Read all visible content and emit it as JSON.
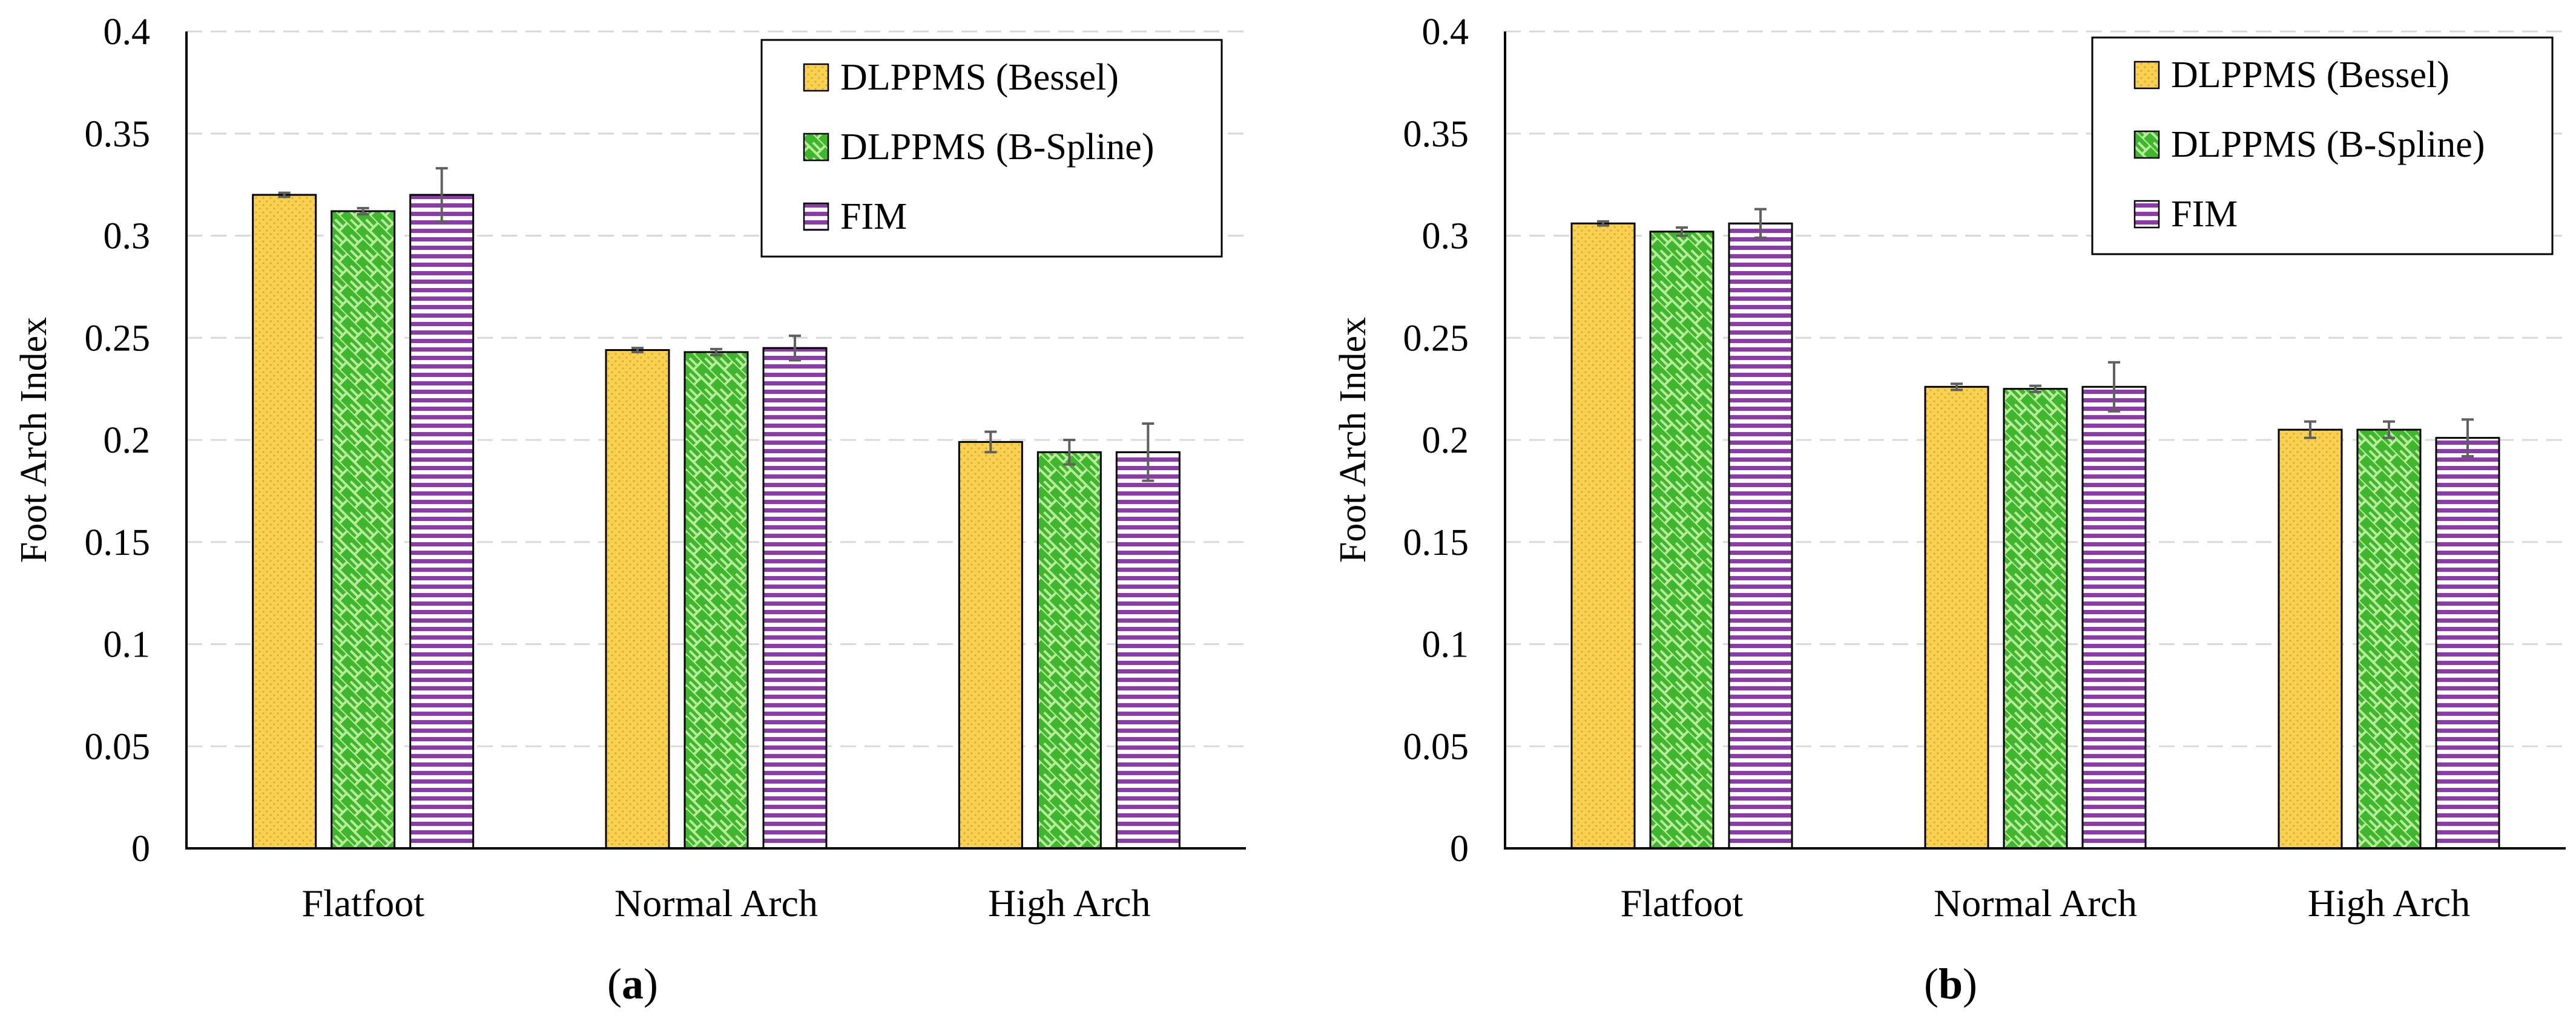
{
  "legend": {
    "bessel": "DLPPMS (Bessel)",
    "bspline": "DLPPMS (B-Spline)",
    "fim": "FIM"
  },
  "colors": {
    "bessel_fill": "#f7d154",
    "bessel_pattern": "#f0b830",
    "bspline_fill": "#3fb62d",
    "bspline_pattern": "#b8ec9a",
    "fim_fill": "#ffffff",
    "fim_stripe": "#8b3ca8",
    "axis": "#000000",
    "grid": "#d9d9d9",
    "errorbar": "#606060"
  },
  "chart_data": [
    {
      "type": "bar",
      "panel_label": "a",
      "categories": [
        "Flatfoot",
        "Normal Arch",
        "High Arch"
      ],
      "series": [
        {
          "name": "DLPPMS (Bessel)",
          "values": [
            0.32,
            0.244,
            0.199
          ],
          "errors": [
            0.001,
            0.001,
            0.005
          ]
        },
        {
          "name": "DLPPMS (B-Spline)",
          "values": [
            0.312,
            0.243,
            0.194
          ],
          "errors": [
            0.0015,
            0.0015,
            0.006
          ]
        },
        {
          "name": "FIM",
          "values": [
            0.32,
            0.245,
            0.194
          ],
          "errors": [
            0.013,
            0.006,
            0.014
          ]
        }
      ],
      "ylabel": "Foot Arch Index",
      "xlabel": "",
      "ylim": [
        0,
        0.4
      ],
      "yticks": [
        "0",
        "0.05",
        "0.1",
        "0.15",
        "0.2",
        "0.25",
        "0.3",
        "0.35",
        "0.4"
      ],
      "grid": true,
      "legend_position": "top-right"
    },
    {
      "type": "bar",
      "panel_label": "b",
      "categories": [
        "Flatfoot",
        "Normal Arch",
        "High Arch"
      ],
      "series": [
        {
          "name": "DLPPMS (Bessel)",
          "values": [
            0.306,
            0.226,
            0.205
          ],
          "errors": [
            0.001,
            0.0015,
            0.004
          ]
        },
        {
          "name": "DLPPMS (B-Spline)",
          "values": [
            0.302,
            0.225,
            0.205
          ],
          "errors": [
            0.002,
            0.0015,
            0.004
          ]
        },
        {
          "name": "FIM",
          "values": [
            0.306,
            0.226,
            0.201
          ],
          "errors": [
            0.007,
            0.012,
            0.009
          ]
        }
      ],
      "ylabel": "Foot Arch Index",
      "xlabel": "",
      "ylim": [
        0,
        0.4
      ],
      "yticks": [
        "0",
        "0.05",
        "0.1",
        "0.15",
        "0.2",
        "0.25",
        "0.3",
        "0.35",
        "0.4"
      ],
      "grid": true,
      "legend_position": "top-right"
    }
  ]
}
